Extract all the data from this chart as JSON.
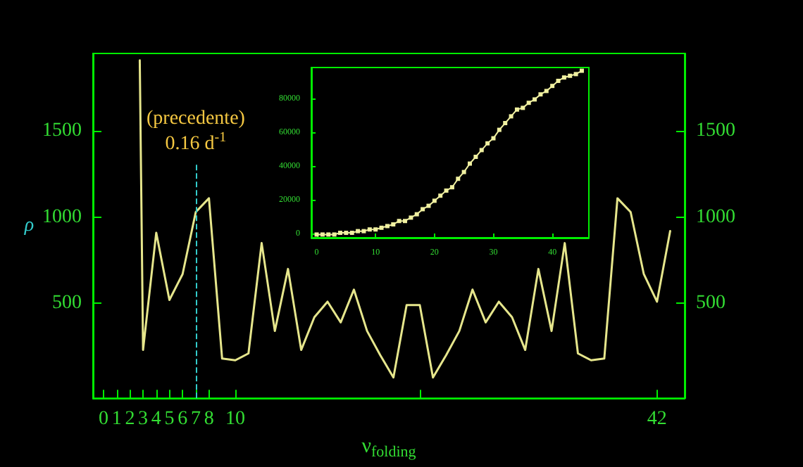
{
  "chart_data": [
    {
      "type": "line",
      "xlabel": "ν$_{folding}$",
      "ylabel": "ρ",
      "x": [
        2.75,
        3,
        4,
        5,
        6,
        7,
        8,
        9,
        10,
        11,
        12,
        13,
        14,
        15,
        16,
        17,
        18,
        19,
        20,
        21,
        22,
        23,
        24,
        25,
        26,
        27,
        28,
        29,
        30,
        31,
        32,
        33,
        34,
        35,
        36,
        37,
        38,
        39,
        40,
        41,
        42,
        43
      ],
      "series": [
        {
          "color": "#e6e68c",
          "values": [
            1910,
            230,
            910,
            520,
            670,
            1030,
            1110,
            180,
            170,
            210,
            850,
            340,
            700,
            230,
            420,
            510,
            390,
            580,
            340,
            200,
            70,
            490,
            490,
            70,
            200,
            340,
            580,
            390,
            510,
            420,
            230,
            700,
            340,
            850,
            210,
            170,
            180,
            1110,
            1030,
            670,
            510,
            920
          ]
        }
      ],
      "xlim": [
        -0.8,
        44.1
      ],
      "xticks": [
        0,
        1,
        2,
        3,
        4,
        5,
        6,
        7,
        8,
        10,
        {
          "value": 24,
          "label": null
        },
        42
      ],
      "ylim": [
        -50,
        1950
      ],
      "yticks": [
        500,
        1000,
        1500
      ],
      "y2lim": [
        -50,
        1950
      ],
      "y2ticks": [
        500,
        1000,
        1500
      ],
      "ref_lines": [
        {
          "axis": "x",
          "value": 7,
          "label": "(precedente)\n0.16 d$^{-1}$",
          "color": "#33cccc",
          "line_style": "dashed"
        }
      ],
      "marker": "none",
      "grid": false
    },
    {
      "type": "line",
      "x": [
        0,
        1,
        2,
        3,
        4,
        5,
        6,
        7,
        8,
        9,
        10,
        11,
        12,
        13,
        14,
        15,
        16,
        17,
        18,
        19,
        20,
        21,
        22,
        23,
        24,
        25,
        26,
        27,
        28,
        29,
        30,
        31,
        32,
        33,
        34,
        35,
        36,
        37,
        38,
        39,
        40,
        41,
        42,
        43,
        44,
        45
      ],
      "series": [
        {
          "color": "#f0f0a0",
          "values": [
            0,
            0,
            0,
            0,
            1000,
            1000,
            1000,
            2000,
            2000,
            3000,
            3000,
            4000,
            5000,
            6000,
            8000,
            8000,
            10000,
            12000,
            15000,
            17000,
            20000,
            23000,
            26000,
            28000,
            33000,
            37000,
            42000,
            46000,
            50000,
            54000,
            57000,
            62000,
            66000,
            70000,
            74000,
            75000,
            78000,
            80000,
            83000,
            85000,
            88000,
            91000,
            93000,
            94000,
            95000,
            97000
          ]
        }
      ],
      "xlim": [
        -0.9,
        46.2
      ],
      "xticks": [
        0,
        10,
        20,
        30,
        40
      ],
      "ylim": [
        -1900,
        98900
      ],
      "yticks": [
        0,
        20000,
        40000,
        60000,
        80000
      ],
      "marker": "square",
      "grid": false
    }
  ]
}
